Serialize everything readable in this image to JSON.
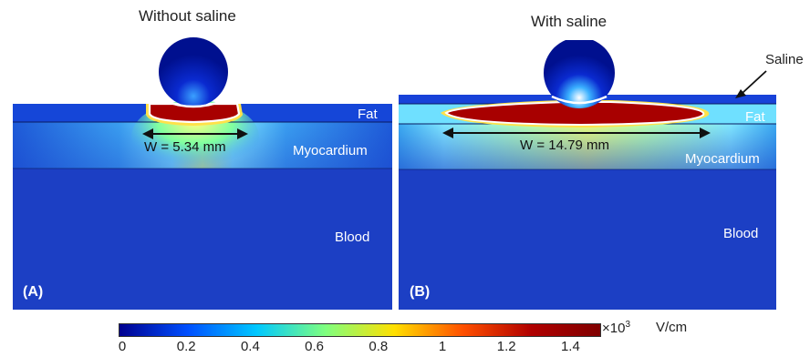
{
  "panels": [
    {
      "id": "A",
      "title": "Without saline",
      "panel_label": "(A)",
      "layers": {
        "fat": "Fat",
        "myocardium": "Myocardium",
        "blood": "Blood"
      },
      "width_label": "W = 5.34 mm"
    },
    {
      "id": "B",
      "title": "With saline",
      "panel_label": "(B)",
      "layers": {
        "saline": "Saline",
        "fat": "Fat",
        "myocardium": "Myocardium",
        "blood": "Blood"
      },
      "width_label": "W = 14.79 mm"
    }
  ],
  "colorbar": {
    "ticks": [
      "0",
      "0.2",
      "0.4",
      "0.6",
      "0.8",
      "1",
      "1.2",
      "1.4"
    ],
    "multiplier": "×10",
    "exponent": "3",
    "unit": "V/cm",
    "colormap": [
      "#00008f",
      "#0050ff",
      "#00c8ff",
      "#7fff7f",
      "#ffe000",
      "#ff5000",
      "#b00000",
      "#800000"
    ]
  }
}
